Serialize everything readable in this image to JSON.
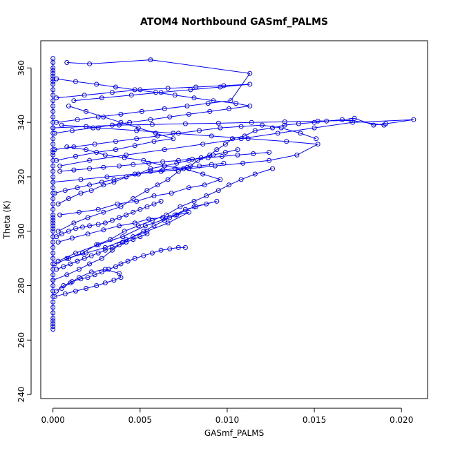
{
  "chart_data": {
    "type": "line",
    "title": "ATOM4 Northbound GASmf_PALMS",
    "xlabel": "GASmf_PALMS",
    "ylabel": "Theta (K)",
    "xlim": [
      -0.0007,
      0.0215
    ],
    "ylim": [
      238.5,
      370
    ],
    "xticks": [
      "0.000",
      "0.005",
      "0.010",
      "0.015",
      "0.020"
    ],
    "yticks": [
      "240",
      "260",
      "280",
      "300",
      "320",
      "340",
      "360"
    ],
    "grid": false,
    "legend": "none",
    "color": "#0000ff",
    "marker": "open-circle",
    "series": [
      {
        "x": [
          0.0,
          0.0,
          0.0,
          0.0,
          0.0,
          0.0,
          0.0,
          0.0,
          0.0,
          0.0,
          0.0,
          0.0,
          0.0,
          0.0,
          0.0,
          0.0,
          0.0,
          0.0,
          0.0,
          0.0,
          0.0,
          0.0,
          0.0,
          0.0,
          0.0,
          0.0,
          0.0,
          0.0,
          0.0,
          0.0,
          0.0,
          0.0,
          0.0,
          0.0,
          0.0,
          0.0,
          0.0,
          0.0,
          0.0,
          0.0,
          0.0,
          0.0,
          0.0,
          0.0,
          0.0,
          0.0,
          0.0,
          0.0,
          0.0,
          0.0,
          0.0,
          0.0,
          0.0,
          0.0,
          0.0,
          0.0,
          0.0,
          0.0,
          0.0,
          0.0
        ],
        "y": [
          264,
          265,
          266,
          267,
          268,
          270,
          272,
          274,
          276,
          278,
          280,
          282,
          284,
          286,
          288,
          290,
          292,
          294,
          296,
          298,
          300,
          301,
          302,
          303,
          304,
          305,
          306,
          308,
          310,
          312,
          314,
          316,
          318,
          320,
          322,
          324,
          326,
          328,
          329,
          330,
          332,
          334,
          336,
          338,
          340,
          342,
          344,
          346,
          348,
          350,
          352,
          354,
          355,
          356,
          357,
          358,
          359,
          360,
          362,
          363.5
        ]
      },
      {
        "x": [
          0.0003,
          0.0012,
          0.002,
          0.0029,
          0.0039,
          0.0046,
          0.0054,
          0.006,
          0.0066,
          0.0072,
          0.0079,
          0.0083,
          0.009,
          0.0094,
          0.0099,
          0.0103,
          0.011,
          0.0116,
          0.0126,
          0.0133,
          0.0141,
          0.015,
          0.0157,
          0.0166,
          0.0173,
          0.0184,
          0.0191,
          0.0207,
          0.0172,
          0.015,
          0.0129,
          0.0108,
          0.0086,
          0.0064,
          0.0042,
          0.0021,
          0.0004
        ],
        "y": [
          300,
          303,
          305,
          307,
          309,
          312,
          315,
          317,
          319,
          322,
          324,
          326,
          328,
          330,
          332,
          334,
          335,
          337,
          338,
          339,
          339.5,
          340,
          340.5,
          341,
          341.5,
          339,
          339.5,
          341,
          340,
          338,
          336,
          334,
          332,
          330,
          328,
          326,
          324
        ]
      },
      {
        "x": [
          0.0001,
          0.0011,
          0.0023,
          0.0034,
          0.0044,
          0.0056,
          0.0067,
          0.0078,
          0.009,
          0.0101,
          0.0113,
          0.0105,
          0.0092,
          0.0081,
          0.007,
          0.0059,
          0.0047,
          0.0036,
          0.0025,
          0.0013,
          0.0002
        ],
        "y": [
          336,
          337,
          338,
          339,
          340,
          341,
          342,
          343,
          344,
          345,
          346,
          347,
          348,
          349,
          350,
          351,
          352,
          353,
          354,
          355,
          356
        ]
      },
      {
        "x": [
          0.0002,
          0.0014,
          0.0026,
          0.0039,
          0.0051,
          0.0064,
          0.0077,
          0.0089,
          0.0102,
          0.0113,
          0.0056,
          0.0021,
          0.0008
        ],
        "y": [
          340,
          341,
          342,
          343,
          344,
          345,
          346,
          347,
          348,
          358,
          363,
          361.5,
          362
        ]
      },
      {
        "x": [
          0.0001,
          0.0009,
          0.0017,
          0.0025,
          0.0033,
          0.0041,
          0.0049,
          0.0057,
          0.0065,
          0.0073,
          0.0081,
          0.0088,
          0.0095,
          0.0101,
          0.0108,
          0.0116,
          0.0126
        ],
        "y": [
          288,
          290,
          292,
          295,
          297,
          300,
          302,
          304,
          306,
          309,
          311,
          313,
          315,
          317,
          319,
          321,
          323
        ]
      },
      {
        "x": [
          0.0,
          0.0008,
          0.0015,
          0.0021,
          0.0028,
          0.0034,
          0.004,
          0.0046,
          0.0052,
          0.0058,
          0.0064,
          0.007,
          0.0076,
          0.0082,
          0.0088,
          0.0094,
          0.0081,
          0.0067,
          0.0053,
          0.004,
          0.0026,
          0.0013,
          0.0003
        ],
        "y": [
          282,
          284,
          286,
          288,
          290,
          293,
          296,
          298,
          300,
          302,
          304,
          306,
          308,
          309,
          310,
          311,
          309,
          305,
          302,
          298,
          295,
          292,
          289
        ]
      },
      {
        "x": [
          0.0002,
          0.0006,
          0.0011,
          0.0016,
          0.002,
          0.0024,
          0.0028,
          0.0032,
          0.0036,
          0.0039,
          0.0043,
          0.0047,
          0.0052,
          0.0057,
          0.0062,
          0.0067,
          0.0072,
          0.0076
        ],
        "y": [
          278,
          280,
          281.5,
          282.5,
          283,
          284,
          285,
          286,
          287,
          288,
          289,
          290,
          291,
          292,
          293,
          293.5,
          294,
          294
        ]
      },
      {
        "x": [
          0.0001,
          0.0007,
          0.0013,
          0.0019,
          0.0025,
          0.003,
          0.0035,
          0.0039,
          0.0038,
          0.003,
          0.0022,
          0.0015,
          0.001,
          0.0005
        ],
        "y": [
          276,
          277,
          278,
          279,
          280,
          281,
          282,
          283,
          284.5,
          286,
          285,
          283,
          281,
          279
        ]
      },
      {
        "x": [
          0.0,
          0.0016,
          0.0031,
          0.0047,
          0.0062,
          0.0078,
          0.0093,
          0.0109,
          0.0124,
          0.014,
          0.0152,
          0.0134,
          0.0112,
          0.0091,
          0.0069,
          0.0048,
          0.0026,
          0.0005
        ],
        "y": [
          318,
          319,
          320,
          321,
          322,
          323,
          324,
          325,
          326,
          328,
          332,
          333,
          334,
          335,
          336,
          337,
          338,
          339
        ]
      },
      {
        "x": [
          0.0004,
          0.0015,
          0.0026,
          0.0037,
          0.0048,
          0.0058,
          0.0068,
          0.0078,
          0.0087,
          0.0096,
          0.0086,
          0.0075,
          0.0064,
          0.0052,
          0.0041,
          0.003,
          0.0019,
          0.0008
        ],
        "y": [
          306,
          307,
          308,
          310,
          311,
          313,
          314,
          316,
          317,
          319,
          321,
          323,
          324,
          326,
          327,
          328,
          330,
          331
        ]
      },
      {
        "x": [
          0.0003,
          0.0011,
          0.002,
          0.0029,
          0.0038,
          0.0047,
          0.0055,
          0.0063,
          0.0071,
          0.0078,
          0.0066,
          0.0054,
          0.0042,
          0.003,
          0.0019,
          0.0008
        ],
        "y": [
          296,
          297.5,
          299,
          300.5,
          302,
          303,
          304.5,
          305,
          306,
          307,
          303,
          300,
          297,
          294,
          292,
          290
        ]
      },
      {
        "x": [
          0.0002,
          0.0018,
          0.0034,
          0.005,
          0.0066,
          0.0082,
          0.0098,
          0.0113,
          0.0096,
          0.0079,
          0.0062,
          0.0045,
          0.0028,
          0.0012
        ],
        "y": [
          349,
          350,
          351,
          352,
          352.5,
          353,
          353.5,
          354,
          353,
          352,
          351,
          350,
          349,
          348
        ]
      },
      {
        "x": [
          0.0001,
          0.0012,
          0.0024,
          0.0036,
          0.0048,
          0.006,
          0.0072,
          0.0084,
          0.0096,
          0.0108,
          0.012,
          0.0131,
          0.0142,
          0.0151
        ],
        "y": [
          330,
          331,
          332,
          333,
          334,
          335,
          336,
          337,
          338,
          338.5,
          339,
          338,
          336,
          334
        ]
      },
      {
        "x": [
          0.0003,
          0.0009,
          0.0016,
          0.0022,
          0.0029,
          0.0035,
          0.0042,
          0.0049,
          0.0056,
          0.0064,
          0.0071,
          0.0078,
          0.0085,
          0.0092,
          0.0099,
          0.0106
        ],
        "y": [
          310,
          312,
          314,
          315,
          317,
          318,
          320,
          321,
          323,
          324,
          325,
          326,
          327,
          328,
          329,
          330
        ]
      },
      {
        "x": [
          0.0002,
          0.0005,
          0.0009,
          0.0013,
          0.0017,
          0.0021,
          0.0026,
          0.003,
          0.0034,
          0.0038,
          0.0042,
          0.0046,
          0.005,
          0.0054,
          0.0058,
          0.0062
        ],
        "y": [
          298,
          299,
          300,
          301,
          301.5,
          302,
          302.5,
          303,
          304,
          305,
          306,
          307,
          308,
          309,
          310,
          311
        ]
      },
      {
        "x": [
          0.0001,
          0.0007,
          0.0014,
          0.0021,
          0.0028,
          0.0035,
          0.0042,
          0.0049,
          0.0056,
          0.0063,
          0.007,
          0.0077,
          0.0084,
          0.0091,
          0.0098
        ],
        "y": [
          314,
          315,
          316,
          317,
          318,
          319,
          320,
          321,
          322,
          322.5,
          323,
          323.5,
          324,
          324.5,
          325
        ]
      },
      {
        "x": [
          0.0,
          0.0019,
          0.0038,
          0.0057,
          0.0076,
          0.0095,
          0.0114,
          0.0133,
          0.0152,
          0.0171,
          0.019
        ],
        "y": [
          338,
          338.5,
          339,
          339.2,
          339.5,
          339.7,
          340,
          340.2,
          340.5,
          340.7,
          339
        ]
      },
      {
        "x": [
          0.0004,
          0.0012,
          0.0021,
          0.0029,
          0.0038,
          0.0046,
          0.0055,
          0.0063,
          0.0072,
          0.008,
          0.0089,
          0.0097,
          0.0106,
          0.0115,
          0.0124
        ],
        "y": [
          322,
          322.5,
          323,
          323.5,
          324,
          324.5,
          325,
          325.5,
          326,
          326.5,
          327,
          327.5,
          328,
          328.5,
          329
        ]
      },
      {
        "x": [
          0.0002,
          0.0006,
          0.001,
          0.0014,
          0.0018,
          0.0022,
          0.0026,
          0.003,
          0.0034,
          0.0038,
          0.0042,
          0.0046,
          0.005,
          0.0054
        ],
        "y": [
          286,
          287,
          288,
          289,
          290,
          291,
          292,
          293,
          294,
          295,
          296,
          297,
          298,
          299
        ]
      },
      {
        "x": [
          0.0002,
          0.0013,
          0.0025,
          0.0036,
          0.0047,
          0.0058,
          0.0069,
          0.0059,
          0.0049,
          0.0039,
          0.0029,
          0.0019,
          0.0009
        ],
        "y": [
          326,
          327.5,
          329,
          330,
          331.5,
          333,
          334,
          336,
          338,
          340,
          342,
          344,
          346
        ]
      }
    ]
  }
}
